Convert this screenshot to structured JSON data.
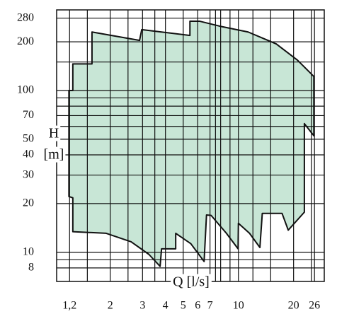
{
  "chart_data": {
    "type": "area",
    "x_label": "Q [l/s]",
    "y_label": [
      "H",
      "[m]"
    ],
    "log_x": true,
    "log_y": true,
    "xlim": [
      1.02,
      29.4
    ],
    "ylim": [
      6.6,
      315
    ],
    "xticks": [
      {
        "value": 1.2,
        "label": "1,2"
      },
      2,
      3,
      4,
      5,
      6,
      7,
      10,
      20,
      26
    ],
    "yticks": [
      8,
      10,
      20,
      30,
      40,
      50,
      70,
      100,
      200,
      280
    ],
    "xgrid": [
      1.2,
      1.5,
      2,
      2.5,
      3,
      3.5,
      4,
      5,
      6,
      7,
      7.5,
      8,
      9,
      10,
      12,
      15,
      20,
      25,
      26
    ],
    "ygrid": [
      8,
      9,
      10,
      20,
      30,
      40,
      50,
      60,
      70,
      80,
      90,
      100,
      150,
      200,
      280
    ],
    "color": "#c8e6d6",
    "x": [
      1.19,
      1.19,
      1.25,
      1.25,
      1.59,
      1.59,
      2.89,
      2.97,
      5.44,
      5.44,
      6.16,
      7.9,
      11.3,
      16.1,
      21.0,
      25.8,
      25.8,
      22.9,
      22.9,
      18.7,
      17.3,
      13.5,
      13.1,
      11.5,
      10.0,
      9.96,
      8.6,
      7.1,
      6.7,
      6.5,
      5.5,
      4.55,
      4.55,
      3.81,
      3.74,
      3.25,
      2.6,
      1.9,
      1.25,
      1.25
    ],
    "y": [
      22.1,
      100,
      100,
      146,
      146,
      230,
      204,
      238,
      219,
      268,
      268,
      250,
      230,
      194,
      154,
      122,
      52.5,
      62.4,
      17.7,
      13.7,
      17.4,
      17.4,
      10.7,
      13.1,
      15.1,
      10.5,
      13.1,
      16.9,
      17.0,
      8.77,
      11.3,
      13.1,
      10.5,
      10.5,
      8.18,
      9.7,
      11.6,
      13.1,
      13.4,
      21.7
    ]
  }
}
